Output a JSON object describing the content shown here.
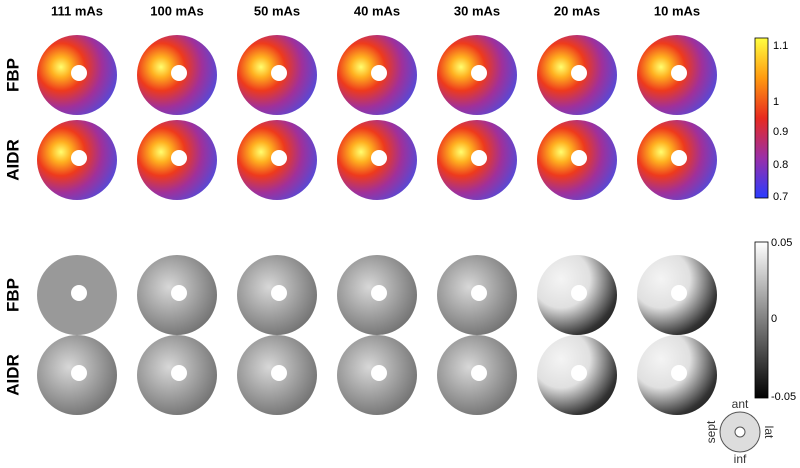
{
  "columns": [
    "111 mAs",
    "100 mAs",
    "50 mAs",
    "40 mAs",
    "30 mAs",
    "20 mAs",
    "10 mAs"
  ],
  "top_panel": {
    "rows": [
      "FBP",
      "AIDR"
    ],
    "colorbar_ticks": [
      "1.1",
      "1",
      "0.9",
      "0.8",
      "0.7"
    ]
  },
  "bottom_panel": {
    "rows": [
      "FBP",
      "AIDR"
    ],
    "colorbar_ticks": [
      "0.05",
      "0",
      "-0.05"
    ]
  },
  "orientation": {
    "top": "ant",
    "left": "sept",
    "right": "lat",
    "bottom": "inf"
  }
}
